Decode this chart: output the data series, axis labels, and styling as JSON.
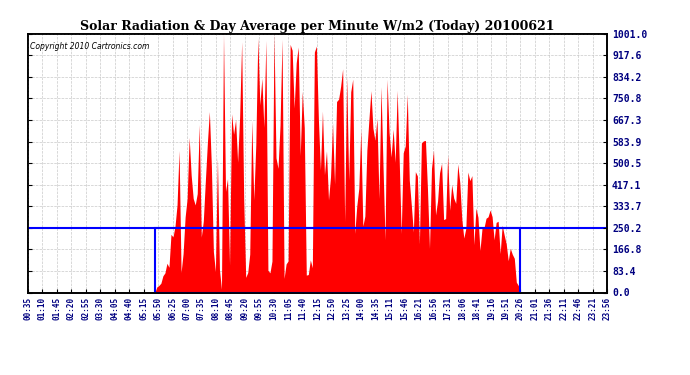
{
  "title": "Solar Radiation & Day Average per Minute W/m2 (Today) 20100621",
  "copyright": "Copyright 2010 Cartronics.com",
  "bg_color": "#ffffff",
  "plot_bg_color": "#ffffff",
  "y_max": 1001.0,
  "y_min": 0.0,
  "y_ticks": [
    0.0,
    83.4,
    166.8,
    250.2,
    333.7,
    417.1,
    500.5,
    583.9,
    667.3,
    750.8,
    834.2,
    917.6,
    1001.0
  ],
  "y_tick_labels": [
    "0.0",
    "83.4",
    "166.8",
    "250.2",
    "333.7",
    "417.1",
    "500.5",
    "583.9",
    "667.3",
    "750.8",
    "834.2",
    "917.6",
    "1001.0"
  ],
  "grid_color": "#bbbbbb",
  "fill_color": "#ff0000",
  "avg_line_color": "#0000ff",
  "avg_value": 250.2,
  "sunrise_idx": 63,
  "sunset_idx": 244,
  "n_points": 288,
  "x_tick_labels": [
    "00:35",
    "01:10",
    "01:45",
    "02:20",
    "02:55",
    "03:30",
    "04:05",
    "04:40",
    "05:15",
    "05:50",
    "06:25",
    "07:00",
    "07:35",
    "08:10",
    "08:45",
    "09:20",
    "09:55",
    "10:30",
    "11:05",
    "11:40",
    "12:15",
    "12:50",
    "13:25",
    "14:00",
    "14:35",
    "15:11",
    "15:46",
    "16:21",
    "16:56",
    "17:31",
    "18:06",
    "18:41",
    "19:16",
    "19:51",
    "20:26",
    "21:01",
    "21:36",
    "22:11",
    "22:46",
    "23:21",
    "23:56"
  ]
}
